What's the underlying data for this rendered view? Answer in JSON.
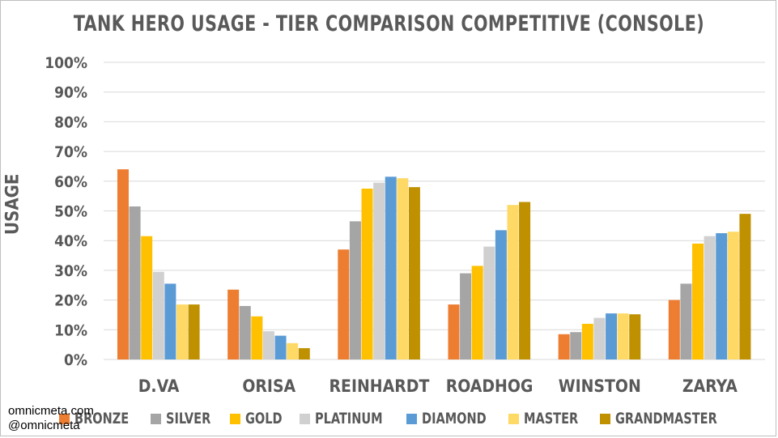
{
  "credits": {
    "site": "omnicmeta.com",
    "handle": "@omnicmeta"
  },
  "chart_data": {
    "type": "bar",
    "title": "TANK HERO USAGE - TIER COMPARISON COMPETITIVE (CONSOLE)",
    "xlabel": "",
    "ylabel": "USAGE",
    "ylim": [
      0,
      100
    ],
    "yticks": [
      "0%",
      "10%",
      "20%",
      "30%",
      "40%",
      "50%",
      "60%",
      "70%",
      "80%",
      "90%",
      "100%"
    ],
    "grid": true,
    "legend_position": "bottom",
    "categories": [
      "D.VA",
      "ORISA",
      "REINHARDT",
      "ROADHOG",
      "WINSTON",
      "ZARYA"
    ],
    "series": [
      {
        "name": "BRONZE",
        "color": "#ed7d31",
        "values": [
          64,
          23.5,
          37,
          18.5,
          8.5,
          20
        ]
      },
      {
        "name": "SILVER",
        "color": "#a5a5a5",
        "values": [
          51.5,
          18,
          46.5,
          29,
          9.2,
          25.5
        ]
      },
      {
        "name": "GOLD",
        "color": "#ffc000",
        "values": [
          41.5,
          14.5,
          57.5,
          31.5,
          12,
          39
        ]
      },
      {
        "name": "PLATINUM",
        "color": "#d0d0d0",
        "values": [
          29.5,
          9.5,
          59.5,
          38,
          14,
          41.5
        ]
      },
      {
        "name": "DIAMOND",
        "color": "#5b9bd5",
        "values": [
          25.5,
          8,
          61.5,
          43.5,
          15.5,
          42.5
        ]
      },
      {
        "name": "MASTER",
        "color": "#ffd966",
        "values": [
          18.5,
          5.5,
          61,
          52,
          15.5,
          43
        ]
      },
      {
        "name": "GRANDMASTER",
        "color": "#bf9000",
        "values": [
          18.5,
          3.8,
          58,
          53,
          15.2,
          49
        ]
      }
    ]
  }
}
